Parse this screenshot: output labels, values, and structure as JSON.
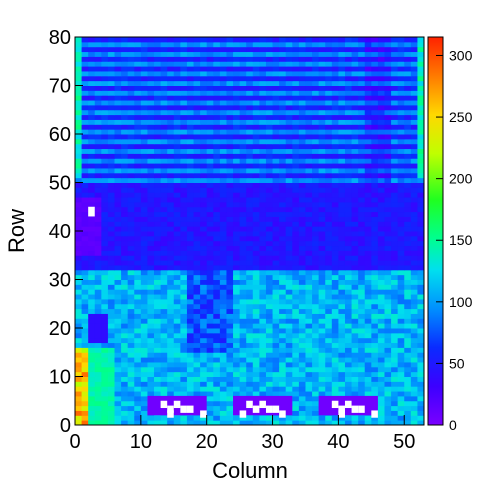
{
  "chart_data": {
    "type": "heatmap",
    "title": "",
    "xlabel": "Column",
    "ylabel": "Row",
    "xlim": [
      0,
      53
    ],
    "ylim": [
      0,
      80
    ],
    "x_ticks": [
      0,
      10,
      20,
      30,
      40,
      50
    ],
    "y_ticks": [
      0,
      10,
      20,
      30,
      40,
      50,
      60,
      70,
      80
    ],
    "colorbar": {
      "range": [
        0,
        315
      ],
      "ticks": [
        0,
        50,
        100,
        150,
        200,
        250,
        300
      ],
      "colormap": "rainbow (purple-blue-cyan-green-yellow-orange-red)"
    },
    "regions": [
      {
        "description": "rows 50-80 banded pattern, alternating blue/cyan rows",
        "approx_value_range": [
          40,
          110
        ]
      },
      {
        "description": "rows 32-50 mostly dark blue/purple",
        "approx_value_range": [
          20,
          70
        ]
      },
      {
        "description": "rows 0-32 mottled cyan/green/blue",
        "approx_value_range": [
          50,
          140
        ]
      },
      {
        "description": "columns 0-1 edge cells, rows 0-15 orange/red",
        "approx_value_range": [
          200,
          300
        ]
      },
      {
        "description": "columns 2-5, rows 0-15 green block",
        "approx_value_range": [
          130,
          160
        ]
      },
      {
        "description": "three purple patches near row 3 with white cells (cols 11-20, 24-33, 37-46)",
        "approx_value_range": [
          0,
          15
        ]
      }
    ],
    "grid": false,
    "legend": "colorbar-right"
  }
}
